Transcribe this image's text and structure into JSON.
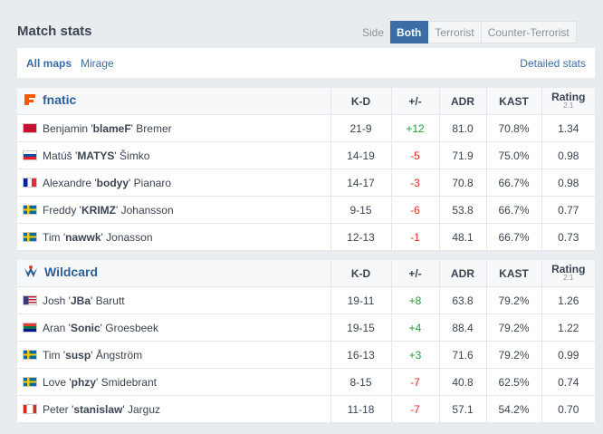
{
  "header": {
    "title": "Match stats",
    "side_label": "Side",
    "side_options": [
      "Both",
      "Terrorist",
      "Counter-Terrorist"
    ]
  },
  "tabs": {
    "maps": [
      "All maps",
      "Mirage"
    ],
    "detailed": "Detailed stats"
  },
  "teams": [
    {
      "name": "fnatic",
      "columns": [
        "K-D",
        "+/-",
        "ADR",
        "KAST",
        "Rating",
        "2.1"
      ],
      "players": [
        {
          "first": "Benjamin '",
          "nick": "blameF",
          "last": "' Bremer",
          "kd": "21-9",
          "pm": "+12",
          "adr": "81.0",
          "kast": "70.8%",
          "rating": "1.34"
        },
        {
          "first": "Matúš '",
          "nick": "MATYS",
          "last": "' Šimko",
          "kd": "14-19",
          "pm": "-5",
          "adr": "71.9",
          "kast": "75.0%",
          "rating": "0.98"
        },
        {
          "first": "Alexandre '",
          "nick": "bodyy",
          "last": "' Pianaro",
          "kd": "14-17",
          "pm": "-3",
          "adr": "70.8",
          "kast": "66.7%",
          "rating": "0.98"
        },
        {
          "first": "Freddy '",
          "nick": "KRIMZ",
          "last": "' Johansson",
          "kd": "9-15",
          "pm": "-6",
          "adr": "53.8",
          "kast": "66.7%",
          "rating": "0.77"
        },
        {
          "first": "Tim '",
          "nick": "nawwk",
          "last": "' Jonasson",
          "kd": "12-13",
          "pm": "-1",
          "adr": "48.1",
          "kast": "66.7%",
          "rating": "0.73"
        }
      ]
    },
    {
      "name": "Wildcard",
      "columns": [
        "K-D",
        "+/-",
        "ADR",
        "KAST",
        "Rating",
        "2.1"
      ],
      "players": [
        {
          "first": "Josh '",
          "nick": "JBa",
          "last": "' Barutt",
          "kd": "19-11",
          "pm": "+8",
          "adr": "63.8",
          "kast": "79.2%",
          "rating": "1.26"
        },
        {
          "first": "Aran '",
          "nick": "Sonic",
          "last": "' Groesbeek",
          "kd": "19-15",
          "pm": "+4",
          "adr": "88.4",
          "kast": "79.2%",
          "rating": "1.22"
        },
        {
          "first": "Tim '",
          "nick": "susp",
          "last": "' Ångström",
          "kd": "16-13",
          "pm": "+3",
          "adr": "71.6",
          "kast": "79.2%",
          "rating": "0.99"
        },
        {
          "first": "Love '",
          "nick": "phzy",
          "last": "' Smidebrant",
          "kd": "8-15",
          "pm": "-7",
          "adr": "40.8",
          "kast": "62.5%",
          "rating": "0.74"
        },
        {
          "first": "Peter '",
          "nick": "stanislaw",
          "last": "' Jarguz",
          "kd": "11-18",
          "pm": "-7",
          "adr": "57.1",
          "kast": "54.2%",
          "rating": "0.70"
        }
      ]
    }
  ]
}
